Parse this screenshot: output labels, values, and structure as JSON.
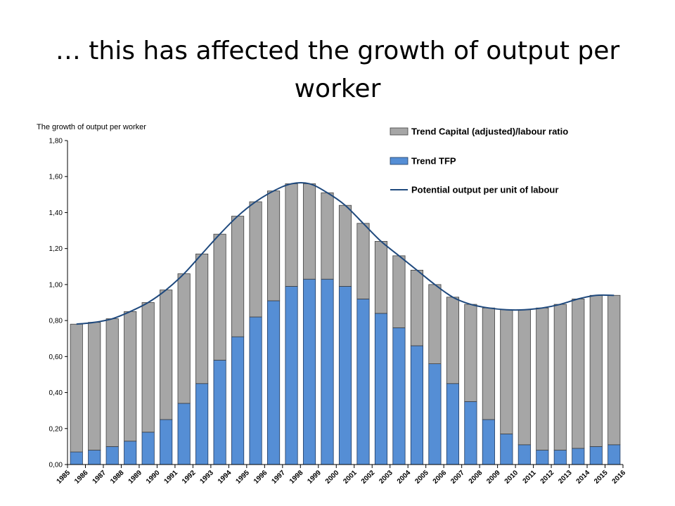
{
  "slide": {
    "title": "… this has affected the growth of output per worker"
  },
  "chart_data": {
    "type": "bar",
    "stacked": true,
    "title": "",
    "ylabel": "The growth of output per worker",
    "xlabel": "",
    "ylim": [
      0,
      1.8
    ],
    "yticks": [
      "0,00",
      "0,20",
      "0,40",
      "0,60",
      "0,80",
      "1,00",
      "1,20",
      "1,40",
      "1,60",
      "1,80"
    ],
    "ytick_values": [
      0,
      0.2,
      0.4,
      0.6,
      0.8,
      1.0,
      1.2,
      1.4,
      1.6,
      1.8
    ],
    "x_tick_labels": [
      "1985",
      "1986",
      "1987",
      "1988",
      "1989",
      "1990",
      "1991",
      "1992",
      "1993",
      "1994",
      "1995",
      "1996",
      "1997",
      "1998",
      "1999",
      "2000",
      "2001",
      "2002",
      "2003",
      "2004",
      "2005",
      "2006",
      "2007",
      "2008",
      "2009",
      "2010",
      "2011",
      "2012",
      "2013",
      "2014",
      "2015",
      "2016"
    ],
    "categories": [
      "1986",
      "1987",
      "1988",
      "1989",
      "1990",
      "1991",
      "1992",
      "1993",
      "1994",
      "1995",
      "1996",
      "1997",
      "1998",
      "1999",
      "2000",
      "2001",
      "2002",
      "2003",
      "2004",
      "2005",
      "2006",
      "2007",
      "2008",
      "2009",
      "2010",
      "2011",
      "2012",
      "2013",
      "2014",
      "2015",
      "2016"
    ],
    "grid": false,
    "legend_position": "top-right",
    "series": [
      {
        "name": "Trend TFP",
        "kind": "bar",
        "color": "#558ed5",
        "values": [
          0.07,
          0.08,
          0.1,
          0.13,
          0.18,
          0.25,
          0.34,
          0.45,
          0.58,
          0.71,
          0.82,
          0.91,
          0.99,
          1.03,
          1.03,
          0.99,
          0.92,
          0.84,
          0.76,
          0.66,
          0.56,
          0.45,
          0.35,
          0.25,
          0.17,
          0.11,
          0.08,
          0.08,
          0.09,
          0.1,
          0.11
        ]
      },
      {
        "name": "Trend Capital (adjusted)/labour ratio",
        "kind": "bar",
        "color": "#a6a6a6",
        "values": [
          0.71,
          0.71,
          0.71,
          0.72,
          0.72,
          0.72,
          0.72,
          0.72,
          0.7,
          0.67,
          0.64,
          0.61,
          0.57,
          0.53,
          0.48,
          0.45,
          0.42,
          0.4,
          0.4,
          0.42,
          0.44,
          0.48,
          0.54,
          0.62,
          0.69,
          0.75,
          0.79,
          0.81,
          0.83,
          0.84,
          0.83
        ]
      },
      {
        "name": "Potential output per unit of labour",
        "kind": "line",
        "color": "#1f497d",
        "values": [
          0.78,
          0.79,
          0.81,
          0.85,
          0.9,
          0.97,
          1.06,
          1.17,
          1.28,
          1.38,
          1.46,
          1.52,
          1.56,
          1.56,
          1.51,
          1.44,
          1.34,
          1.24,
          1.16,
          1.08,
          1.0,
          0.93,
          0.89,
          0.87,
          0.86,
          0.86,
          0.87,
          0.89,
          0.92,
          0.94,
          0.94
        ]
      }
    ],
    "legend": [
      {
        "label": "Trend Capital (adjusted)/labour ratio",
        "kind": "box",
        "color": "#a6a6a6"
      },
      {
        "label": "Trend TFP",
        "kind": "box",
        "color": "#558ed5"
      },
      {
        "label": "Potential output per unit of labour",
        "kind": "line",
        "color": "#1f497d"
      }
    ]
  }
}
